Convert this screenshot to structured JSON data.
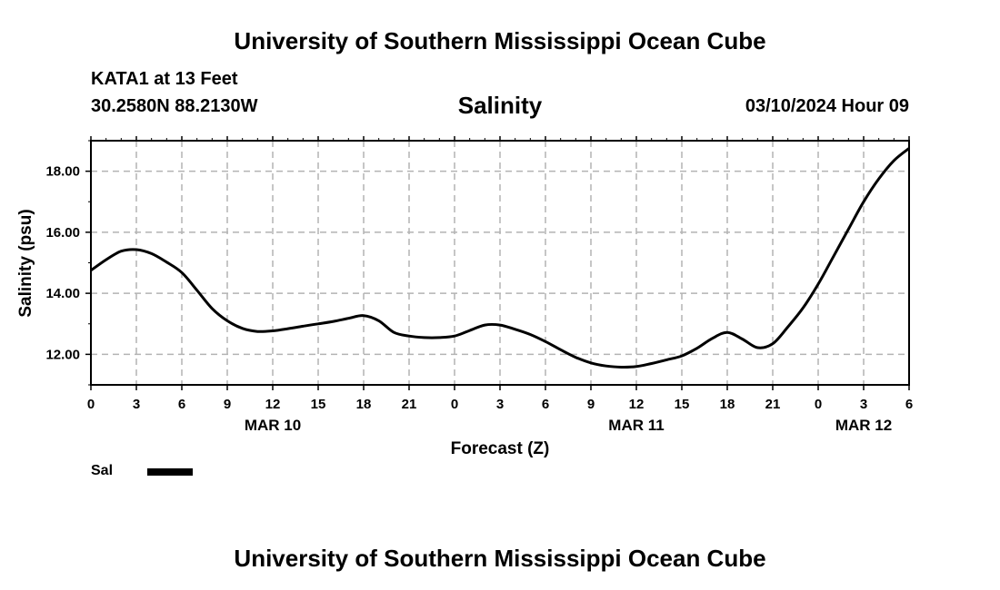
{
  "header": {
    "title": "University of Southern Mississippi Ocean Cube",
    "station": "KATA1 at 13 Feet",
    "coordinates": "30.2580N  88.2130W",
    "chart_title": "Salinity",
    "datetime": "03/10/2024 Hour 09"
  },
  "footer": {
    "title": "University of Southern Mississippi Ocean Cube"
  },
  "legend": {
    "label": "Sal",
    "color": "#000000",
    "placement": "bottom-left"
  },
  "chart_data": {
    "type": "line",
    "title": "Salinity",
    "xlabel": "Forecast (Z)",
    "ylabel": "Salinity (psu)",
    "x_unit": "forecast hour",
    "xlim": [
      0,
      54
    ],
    "ylim": [
      11,
      19
    ],
    "grid": true,
    "x_ticks": [
      0,
      3,
      6,
      9,
      12,
      15,
      18,
      21,
      24,
      27,
      30,
      33,
      36,
      39,
      42,
      45,
      48,
      51,
      54
    ],
    "x_tick_labels": [
      "0",
      "3",
      "6",
      "9",
      "12",
      "15",
      "18",
      "21",
      "0",
      "3",
      "6",
      "9",
      "12",
      "15",
      "18",
      "21",
      "0",
      "3",
      "6"
    ],
    "date_labels": [
      {
        "at": 12,
        "label": "MAR 10"
      },
      {
        "at": 36,
        "label": "MAR 11"
      },
      {
        "at": 51,
        "label": "MAR 12"
      }
    ],
    "y_ticks": [
      12,
      14,
      16,
      18
    ],
    "y_tick_labels": [
      "12.00",
      "14.00",
      "16.00",
      "18.00"
    ],
    "series": [
      {
        "name": "Sal",
        "color": "#000000",
        "x": [
          0,
          1,
          2,
          3,
          4,
          5,
          6,
          7,
          8,
          9,
          10,
          11,
          12,
          13,
          14,
          15,
          16,
          17,
          18,
          19,
          20,
          21,
          22,
          23,
          24,
          25,
          26,
          27,
          28,
          29,
          30,
          31,
          32,
          33,
          34,
          35,
          36,
          37,
          38,
          39,
          40,
          41,
          42,
          43,
          44,
          45,
          46,
          47,
          48,
          49,
          50,
          51,
          52,
          53,
          54
        ],
        "y": [
          14.75,
          15.1,
          15.38,
          15.43,
          15.3,
          15.02,
          14.68,
          14.1,
          13.5,
          13.1,
          12.85,
          12.75,
          12.77,
          12.84,
          12.92,
          13.0,
          13.08,
          13.18,
          13.27,
          13.1,
          12.72,
          12.6,
          12.55,
          12.55,
          12.6,
          12.78,
          12.96,
          12.96,
          12.82,
          12.65,
          12.42,
          12.15,
          11.9,
          11.72,
          11.62,
          11.58,
          11.6,
          11.7,
          11.82,
          11.95,
          12.2,
          12.52,
          12.72,
          12.5,
          12.22,
          12.35,
          12.9,
          13.52,
          14.3,
          15.2,
          16.1,
          17.0,
          17.75,
          18.35,
          18.75
        ]
      }
    ]
  }
}
